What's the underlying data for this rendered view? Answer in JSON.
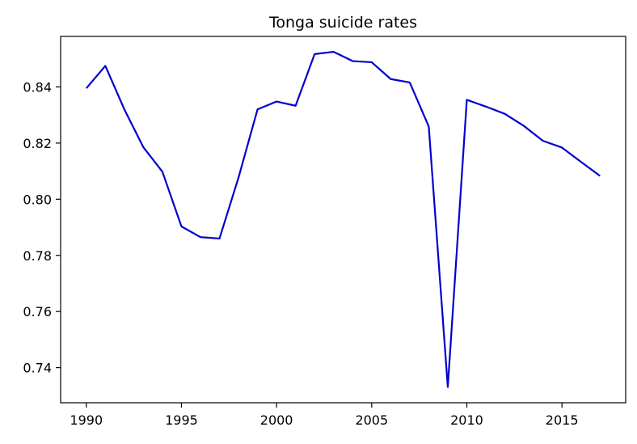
{
  "chart_data": {
    "type": "line",
    "title": "Tonga suicide rates",
    "xlabel": "",
    "ylabel": "",
    "x": [
      1990,
      1991,
      1992,
      1993,
      1994,
      1995,
      1996,
      1997,
      1998,
      1999,
      2000,
      2001,
      2002,
      2003,
      2004,
      2005,
      2006,
      2007,
      2008,
      2009,
      2010,
      2011,
      2012,
      2013,
      2014,
      2015,
      2016,
      2017
    ],
    "series": [
      {
        "name": "",
        "color": "#0000cc",
        "values": [
          0.8395,
          0.8475,
          0.832,
          0.8185,
          0.8098,
          0.7903,
          0.7865,
          0.786,
          0.8077,
          0.832,
          0.8348,
          0.8333,
          0.8517,
          0.8525,
          0.8492,
          0.8488,
          0.8428,
          0.8416,
          0.8259,
          0.7331,
          0.8354,
          0.833,
          0.8304,
          0.8261,
          0.8208,
          0.8184,
          0.8133,
          0.8083
        ]
      }
    ],
    "xticks": [
      "1990",
      "1995",
      "2000",
      "2005",
      "2010",
      "2015"
    ],
    "yticks": [
      "0.74",
      "0.76",
      "0.78",
      "0.80",
      "0.82",
      "0.84"
    ],
    "xlim": [
      1988.65,
      2018.35
    ],
    "ylim": [
      0.7275,
      0.858
    ],
    "grid": false,
    "legend": "none"
  }
}
